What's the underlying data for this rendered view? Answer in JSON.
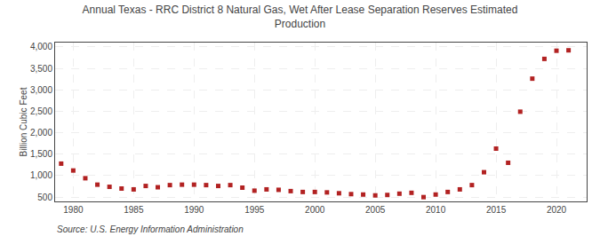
{
  "chart_data": {
    "type": "scatter",
    "title": "Annual Texas - RRC District 8 Natural Gas, Wet After Lease Separation Reserves Estimated\nProduction",
    "ylabel": "Billion Cubic Feet",
    "annotations": [
      "Source: U.S. Energy Information Administration"
    ],
    "color": "#b22222",
    "marker": "square",
    "x": [
      1979,
      1980,
      1981,
      1982,
      1983,
      1984,
      1985,
      1986,
      1987,
      1988,
      1989,
      1990,
      1991,
      1992,
      1993,
      1994,
      1995,
      1996,
      1997,
      1998,
      1999,
      2000,
      2001,
      2002,
      2003,
      2004,
      2005,
      2006,
      2007,
      2008,
      2009,
      2010,
      2011,
      2012,
      2013,
      2014,
      2015,
      2016,
      2017,
      2018,
      2019,
      2020,
      2021
    ],
    "values": [
      1280,
      1120,
      940,
      790,
      740,
      700,
      680,
      760,
      730,
      780,
      790,
      790,
      780,
      760,
      780,
      720,
      650,
      680,
      670,
      640,
      620,
      620,
      610,
      590,
      570,
      560,
      540,
      550,
      580,
      600,
      500,
      560,
      620,
      680,
      780,
      1080,
      1630,
      1300,
      2490,
      3260,
      3720,
      3910,
      3920
    ],
    "xlim": [
      1978.5,
      2022.5
    ],
    "xticks": [
      1980,
      1985,
      1990,
      1995,
      2000,
      2005,
      2010,
      2015,
      2020
    ],
    "ylim": [
      400,
      4100
    ],
    "yticks": [
      500,
      {
        "value": 1000,
        "label": "1,000"
      },
      {
        "value": 1500,
        "label": "1,500"
      },
      {
        "value": 2000,
        "label": "2,000"
      },
      {
        "value": 2500,
        "label": "2,500"
      },
      {
        "value": 3000,
        "label": "3,000"
      },
      {
        "value": 3500,
        "label": "3,500"
      },
      {
        "value": 4000,
        "label": "4,000"
      }
    ],
    "grid": true
  }
}
